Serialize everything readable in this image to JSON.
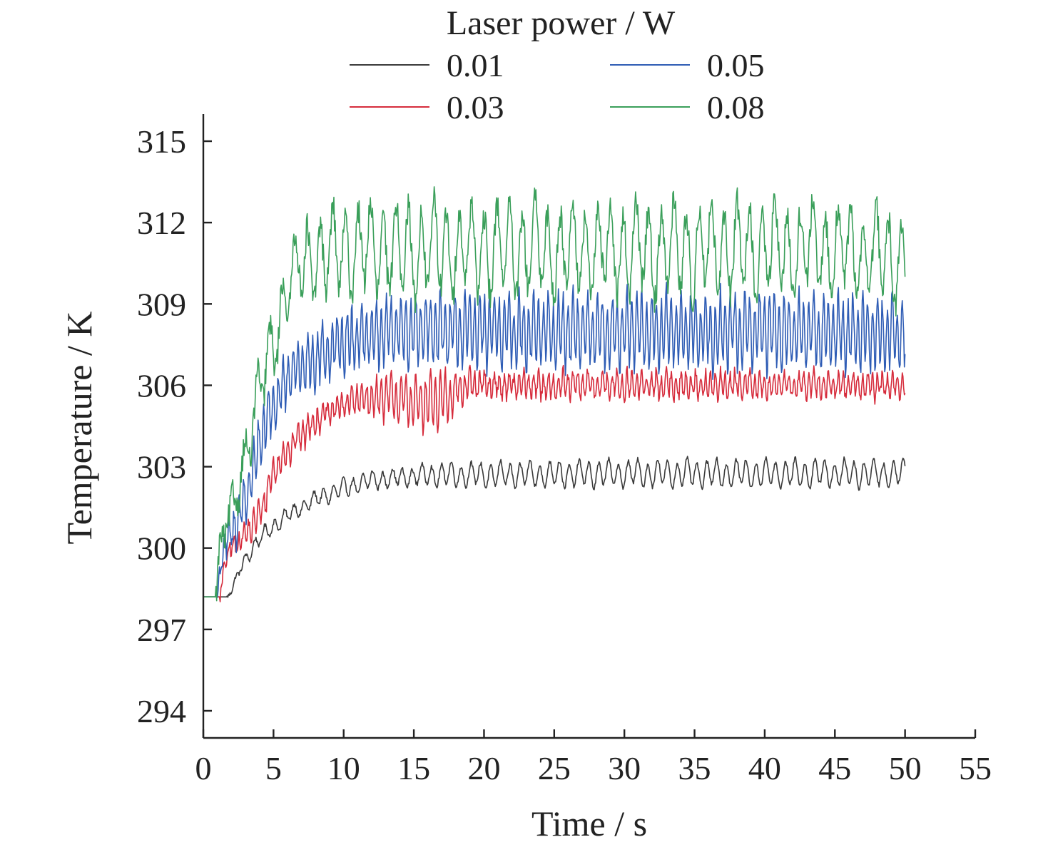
{
  "chart_data": {
    "type": "line",
    "title": "",
    "xlabel": "Time / s",
    "ylabel": "Temperature / K",
    "xlim": [
      0,
      55
    ],
    "ylim": [
      293,
      316
    ],
    "xticks": [
      0,
      5,
      10,
      15,
      20,
      25,
      30,
      35,
      40,
      45,
      50,
      55
    ],
    "yticks": [
      294,
      297,
      300,
      303,
      306,
      309,
      312,
      315
    ],
    "xtick_labels": [
      "0",
      "5",
      "10",
      "15",
      "20",
      "25",
      "30",
      "35",
      "40",
      "45",
      "50",
      "55"
    ],
    "ytick_labels": [
      "294",
      "297",
      "300",
      "303",
      "306",
      "309",
      "312",
      "315"
    ],
    "grid": false,
    "legend": {
      "title": "Laser power / W",
      "placement": "top-center",
      "columns": 2
    },
    "series": [
      {
        "name": "0.01",
        "color": "#3a3a3a",
        "x": [
          0,
          1.7,
          2.0,
          2.5,
          3.0,
          3.5,
          4.0,
          4.5,
          5.0,
          6.0,
          7.0,
          8.0,
          9.0,
          10.0,
          12.0,
          14.0,
          16.0,
          18.0,
          20.0,
          30.0,
          40.0,
          50.0
        ],
        "y": [
          298.2,
          298.2,
          298.4,
          299.1,
          299.6,
          300.0,
          300.3,
          300.6,
          300.8,
          301.2,
          301.5,
          301.8,
          302.0,
          302.2,
          302.5,
          302.6,
          302.7,
          302.7,
          302.7,
          302.75,
          302.75,
          302.75
        ],
        "osc": [
          0,
          0,
          0.05,
          0.15,
          0.2,
          0.25,
          0.25,
          0.25,
          0.25,
          0.25,
          0.25,
          0.25,
          0.28,
          0.3,
          0.3,
          0.3,
          0.35,
          0.4,
          0.4,
          0.45,
          0.45,
          0.45
        ],
        "period": 0.7,
        "noise": 0.08
      },
      {
        "name": "0.03",
        "color": "#d62c3c",
        "x": [
          0,
          1.2,
          1.5,
          2.0,
          3.0,
          4.0,
          5.0,
          6.0,
          7.0,
          8.0,
          9.0,
          10.0,
          11.0,
          12.0,
          13.0,
          14.0,
          15.0,
          16.0,
          17.0,
          18.0,
          19.0,
          20.0,
          30.0,
          40.0,
          50.0
        ],
        "y": [
          298.2,
          298.2,
          299.4,
          300.0,
          300.5,
          301.2,
          302.8,
          303.6,
          304.2,
          304.7,
          305.0,
          305.3,
          305.5,
          305.5,
          305.6,
          305.5,
          305.4,
          305.3,
          305.5,
          305.8,
          306.0,
          306.0,
          306.0,
          306.0,
          306.0
        ],
        "osc": [
          0,
          0,
          0.2,
          0.3,
          0.4,
          0.5,
          0.5,
          0.5,
          0.5,
          0.4,
          0.4,
          0.4,
          0.5,
          0.6,
          0.7,
          0.8,
          0.8,
          1.0,
          1.0,
          0.6,
          0.45,
          0.4,
          0.45,
          0.45,
          0.4
        ],
        "period": 0.35,
        "noise": 0.22
      },
      {
        "name": "0.05",
        "color": "#2f5db5",
        "x": [
          0,
          1.0,
          1.3,
          2.0,
          3.0,
          4.0,
          5.0,
          6.0,
          7.0,
          8.0,
          9.0,
          10.0,
          11.0,
          12.0,
          13.0,
          15.0,
          20.0,
          30.0,
          40.0,
          50.0
        ],
        "y": [
          298.2,
          298.2,
          299.8,
          300.5,
          301.8,
          303.8,
          305.3,
          306.2,
          306.8,
          307.0,
          307.3,
          307.6,
          307.8,
          307.9,
          308.0,
          308.0,
          308.0,
          308.0,
          308.0,
          307.9
        ],
        "osc": [
          0,
          0,
          0.4,
          0.6,
          0.8,
          0.9,
          0.9,
          0.9,
          0.9,
          1.0,
          1.0,
          1.0,
          1.0,
          1.1,
          1.1,
          1.1,
          1.2,
          1.2,
          1.2,
          1.2
        ],
        "period": 0.35,
        "noise": 0.35
      },
      {
        "name": "0.08",
        "color": "#3a9f5a",
        "x": [
          0,
          0.9,
          1.2,
          2.0,
          3.0,
          4.0,
          5.0,
          6.0,
          7.0,
          8.0,
          9.0,
          10.0,
          12.0,
          15.0,
          20.0,
          25.0,
          30.0,
          35.0,
          40.0,
          45.0,
          50.0
        ],
        "y": [
          298.2,
          298.2,
          300.2,
          301.2,
          303.5,
          305.8,
          307.5,
          309.8,
          310.5,
          310.7,
          310.8,
          311.0,
          311.0,
          311.0,
          311.0,
          311.0,
          311.0,
          311.0,
          311.0,
          311.0,
          310.7
        ],
        "osc": [
          0,
          0,
          0.3,
          0.5,
          0.8,
          1.0,
          1.0,
          1.2,
          1.3,
          1.3,
          1.4,
          1.4,
          1.5,
          1.5,
          1.5,
          1.5,
          1.5,
          1.5,
          1.5,
          1.5,
          1.5
        ],
        "period": 0.9,
        "noise": 0.55
      }
    ]
  }
}
